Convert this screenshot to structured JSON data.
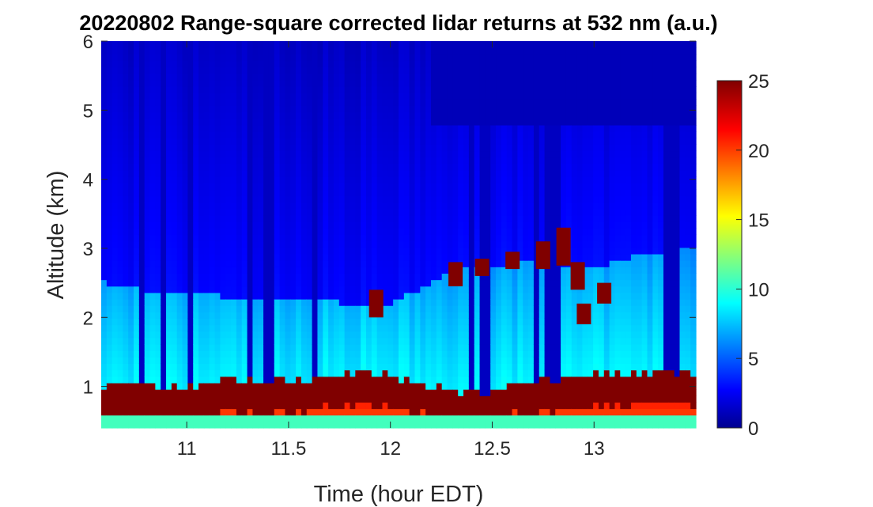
{
  "chart_data": {
    "type": "heatmap",
    "title": "20220802  Range-square corrected lidar returns at 532 nm (a.u.)",
    "xlabel": "Time (hour EDT)",
    "ylabel": "Altitude (km)",
    "xlim": [
      10.58,
      13.5
    ],
    "ylim": [
      0.4,
      6
    ],
    "xticks": [
      "11",
      "11.5",
      "12",
      "12.5",
      "13"
    ],
    "yticks": [
      "1",
      "2",
      "3",
      "4",
      "5",
      "6"
    ],
    "colorbar": {
      "range": [
        0,
        25
      ],
      "ticks": [
        "0",
        "5",
        "10",
        "15",
        "20",
        "25"
      ],
      "colormap": "jet"
    },
    "boundary_layer": {
      "times": [
        10.6,
        10.8,
        11.0,
        11.2,
        11.4,
        11.6,
        11.8,
        12.0,
        12.2,
        12.35,
        12.5,
        12.6,
        12.8,
        13.0,
        13.2,
        13.4,
        13.5
      ],
      "top_km": [
        1.05,
        1.0,
        1.0,
        1.1,
        1.05,
        1.1,
        1.2,
        1.15,
        1.0,
        0.95,
        0.95,
        1.1,
        1.1,
        1.15,
        1.2,
        1.2,
        1.2
      ],
      "aerosol_top_km": [
        2.5,
        2.4,
        2.4,
        2.3,
        2.3,
        2.3,
        2.2,
        2.2,
        2.5,
        2.75,
        2.75,
        2.8,
        2.8,
        2.7,
        2.9,
        3.0,
        3.0
      ]
    },
    "cloud_features": [
      {
        "t": 11.93,
        "z_from": 2.0,
        "z_to": 2.4
      },
      {
        "t": 12.32,
        "z_from": 2.45,
        "z_to": 2.8
      },
      {
        "t": 12.45,
        "z_from": 2.6,
        "z_to": 2.85
      },
      {
        "t": 12.6,
        "z_from": 2.7,
        "z_to": 2.95
      },
      {
        "t": 12.75,
        "z_from": 2.7,
        "z_to": 3.1
      },
      {
        "t": 12.85,
        "z_from": 2.75,
        "z_to": 3.3
      },
      {
        "t": 12.92,
        "z_from": 2.4,
        "z_to": 2.8
      },
      {
        "t": 13.05,
        "z_from": 2.2,
        "z_to": 2.5
      },
      {
        "t": 12.95,
        "z_from": 1.9,
        "z_to": 2.2
      }
    ]
  }
}
